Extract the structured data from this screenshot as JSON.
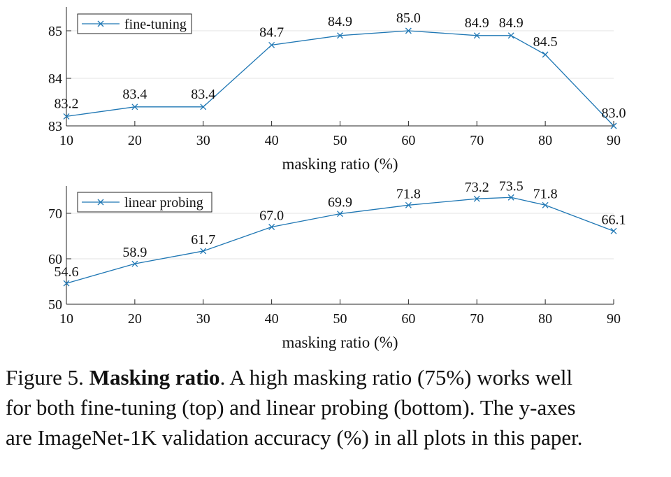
{
  "chart_data": [
    {
      "type": "line",
      "xlabel": "masking ratio (%)",
      "ylabel": "",
      "x": [
        10,
        20,
        30,
        40,
        50,
        60,
        70,
        75,
        80,
        90
      ],
      "xticks": [
        10,
        20,
        30,
        40,
        50,
        60,
        70,
        80,
        90
      ],
      "xlim": [
        10,
        90
      ],
      "ylim": [
        83,
        85.5
      ],
      "yticks": [
        83,
        84,
        85
      ],
      "grid": "horizontal",
      "legend_position": "top-left",
      "color": "#1f77b4",
      "series": [
        {
          "name": "fine-tuning",
          "values": [
            83.2,
            83.4,
            83.4,
            84.7,
            84.9,
            85.0,
            84.9,
            84.9,
            84.5,
            83.0
          ],
          "labels": [
            "83.2",
            "83.4",
            "83.4",
            "84.7",
            "84.9",
            "85.0",
            "84.9",
            "84.9",
            "84.5",
            "83.0"
          ]
        }
      ]
    },
    {
      "type": "line",
      "xlabel": "masking ratio (%)",
      "ylabel": "",
      "x": [
        10,
        20,
        30,
        40,
        50,
        60,
        70,
        75,
        80,
        90
      ],
      "xticks": [
        10,
        20,
        30,
        40,
        50,
        60,
        70,
        80,
        90
      ],
      "xlim": [
        10,
        90
      ],
      "ylim": [
        50,
        76
      ],
      "yticks": [
        50,
        60,
        70
      ],
      "grid": "horizontal",
      "legend_position": "top-left",
      "color": "#1f77b4",
      "series": [
        {
          "name": "linear probing",
          "values": [
            54.6,
            58.9,
            61.7,
            67.0,
            69.9,
            71.8,
            73.2,
            73.5,
            71.8,
            66.1
          ],
          "labels": [
            "54.6",
            "58.9",
            "61.7",
            "67.0",
            "69.9",
            "71.8",
            "73.2",
            "73.5",
            "71.8",
            "66.1"
          ]
        }
      ]
    }
  ],
  "caption": {
    "prefix": "Figure 5. ",
    "bold": "Masking ratio",
    "line1_rest": ". A high masking ratio (75%) works well",
    "line2": "for both fine-tuning (top) and linear probing (bottom). The y-axes",
    "line3": "are ImageNet-1K validation accuracy (%) in all plots in this paper."
  }
}
